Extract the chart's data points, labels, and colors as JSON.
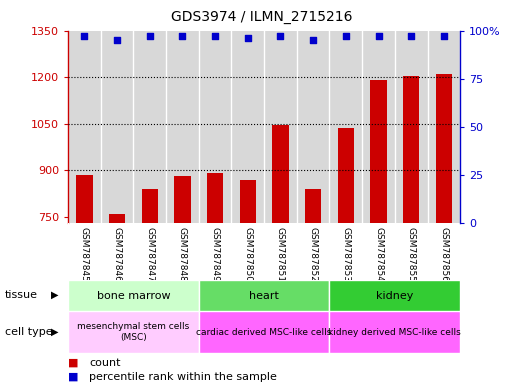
{
  "title": "GDS3974 / ILMN_2715216",
  "samples": [
    "GSM787845",
    "GSM787846",
    "GSM787847",
    "GSM787848",
    "GSM787849",
    "GSM787850",
    "GSM787851",
    "GSM787852",
    "GSM787853",
    "GSM787854",
    "GSM787855",
    "GSM787856"
  ],
  "counts": [
    885,
    757,
    840,
    882,
    892,
    868,
    1045,
    840,
    1035,
    1192,
    1205,
    1210
  ],
  "percentile_ranks": [
    97,
    95,
    97,
    97,
    97,
    96,
    97,
    95,
    97,
    97,
    97,
    97
  ],
  "ylim_left": [
    730,
    1350
  ],
  "ylim_right": [
    0,
    100
  ],
  "yticks_left": [
    750,
    900,
    1050,
    1200,
    1350
  ],
  "yticks_right": [
    0,
    25,
    50,
    75,
    100
  ],
  "bar_color": "#cc0000",
  "dot_color": "#0000cc",
  "tissue_groups": [
    {
      "label": "bone marrow",
      "start": 0,
      "end": 3,
      "color": "#ccffcc"
    },
    {
      "label": "heart",
      "start": 4,
      "end": 7,
      "color": "#66dd66"
    },
    {
      "label": "kidney",
      "start": 8,
      "end": 11,
      "color": "#33cc33"
    }
  ],
  "cell_type_groups": [
    {
      "label": "mesenchymal stem cells\n(MSC)",
      "start": 0,
      "end": 3,
      "color": "#ffccff"
    },
    {
      "label": "cardiac derived MSC-like cells",
      "start": 4,
      "end": 7,
      "color": "#ff66ff"
    },
    {
      "label": "kidney derived MSC-like cells",
      "start": 8,
      "end": 11,
      "color": "#ff66ff"
    }
  ],
  "legend_count_color": "#cc0000",
  "legend_pct_color": "#0000cc",
  "col_bg_color": "#d8d8d8",
  "grid_linestyle": ":",
  "grid_color": "#000000"
}
